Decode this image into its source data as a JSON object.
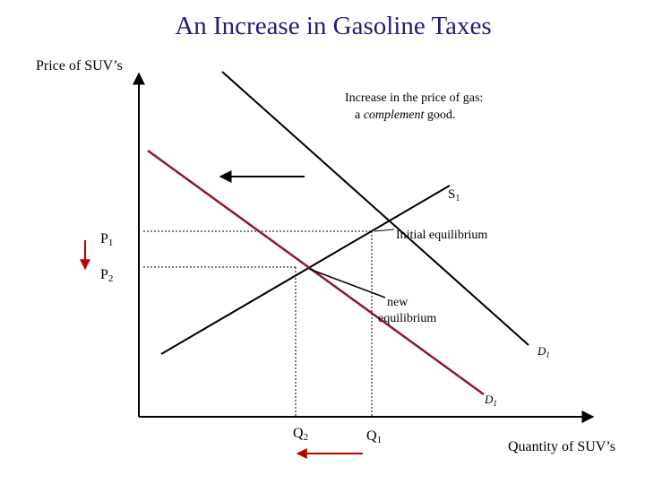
{
  "title": "An Increase in Gasoline Taxes",
  "y_axis_label": "Price of SUV’s",
  "x_axis_label": "Quantity of SUV’s",
  "annotation": {
    "line1": "Increase in the price of gas:",
    "line2_start": "a ",
    "line2_emphasis": "complement",
    "line2_end": " good."
  },
  "labels": {
    "supply": {
      "main": "S",
      "sub": "1"
    },
    "p1": {
      "main": "P",
      "sub": "1"
    },
    "p2": {
      "main": "P",
      "sub": "2"
    },
    "q1": {
      "main": "Q",
      "sub": "1"
    },
    "q2": {
      "main": "Q",
      "sub": "2"
    },
    "d_initial": {
      "main": "D",
      "sub": "1"
    },
    "d_new": {
      "main": "D",
      "sub": "1"
    }
  },
  "initial_equilibrium": "Initial equilibrium",
  "new_equilibrium": {
    "line1": "new",
    "line2": "equilibrium"
  }
}
